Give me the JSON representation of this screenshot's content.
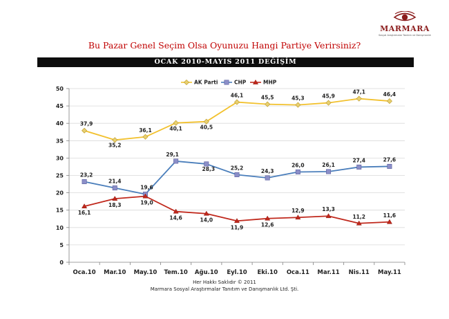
{
  "header": {
    "title": "Bu Pazar Genel Seçim Olsa Oyunuzu Hangi Partiye Verirsiniz?",
    "banner": "OCAK 2010-MAYIS 2011 DEĞİŞİM"
  },
  "logo": {
    "name": "MARMARA",
    "tagline": "Sosyal Araştırmalar Tanıtım ve Danışmanlık"
  },
  "footer": {
    "line1": "Her Hakkı Saklıdır © 2011",
    "line2": "Marmara Sosyal Araştırmalar Tanıtım ve Danışmanlık Ltd. Şti."
  },
  "chart_data": {
    "type": "line",
    "title": "OCAK 2010-MAYIS 2011 DEĞİŞİM",
    "categories": [
      "Oca.10",
      "Mar.10",
      "May.10",
      "Tem.10",
      "Ağu.10",
      "Eyl.10",
      "Eki.10",
      "Oca.11",
      "Mar.11",
      "Nis.11",
      "May.11"
    ],
    "ylim": [
      0,
      50
    ],
    "yticks": [
      0,
      5,
      10,
      15,
      20,
      25,
      30,
      35,
      40,
      45,
      50
    ],
    "legend_position": "top-center",
    "series": [
      {
        "name": "AK Parti",
        "color": "#f2c12e",
        "marker": "diamond",
        "marker_fill": "#e8d070",
        "values": [
          37.9,
          35.2,
          36.1,
          40.1,
          40.5,
          46.1,
          45.5,
          45.3,
          45.9,
          47.1,
          46.4
        ],
        "labels": [
          "37,9",
          "35,2",
          "36,1",
          "40,1",
          "40,5",
          "46,1",
          "45,5",
          "45,3",
          "45,9",
          "47,1",
          "46,4"
        ]
      },
      {
        "name": "CHP",
        "color": "#4a7ebb",
        "marker": "square",
        "marker_fill": "#8c8fc8",
        "values": [
          23.2,
          21.4,
          19.6,
          29.1,
          28.3,
          25.2,
          24.3,
          26.0,
          26.1,
          27.4,
          27.6
        ],
        "labels": [
          "23,2",
          "21,4",
          "19,6",
          "29,1",
          "28,3",
          "25,2",
          "24,3",
          "26,0",
          "26,1",
          "27,4",
          "27,6"
        ]
      },
      {
        "name": "MHP",
        "color": "#c0281c",
        "marker": "triangle",
        "marker_fill": "#c0281c",
        "values": [
          16.1,
          18.3,
          19.0,
          14.6,
          14.0,
          11.9,
          12.6,
          12.9,
          13.3,
          11.2,
          11.6
        ],
        "labels": [
          "16,1",
          "18,3",
          "19,0",
          "14,6",
          "14,0",
          "11,9",
          "12,6",
          "12,9",
          "13,3",
          "11,2",
          "11,6"
        ]
      }
    ]
  }
}
